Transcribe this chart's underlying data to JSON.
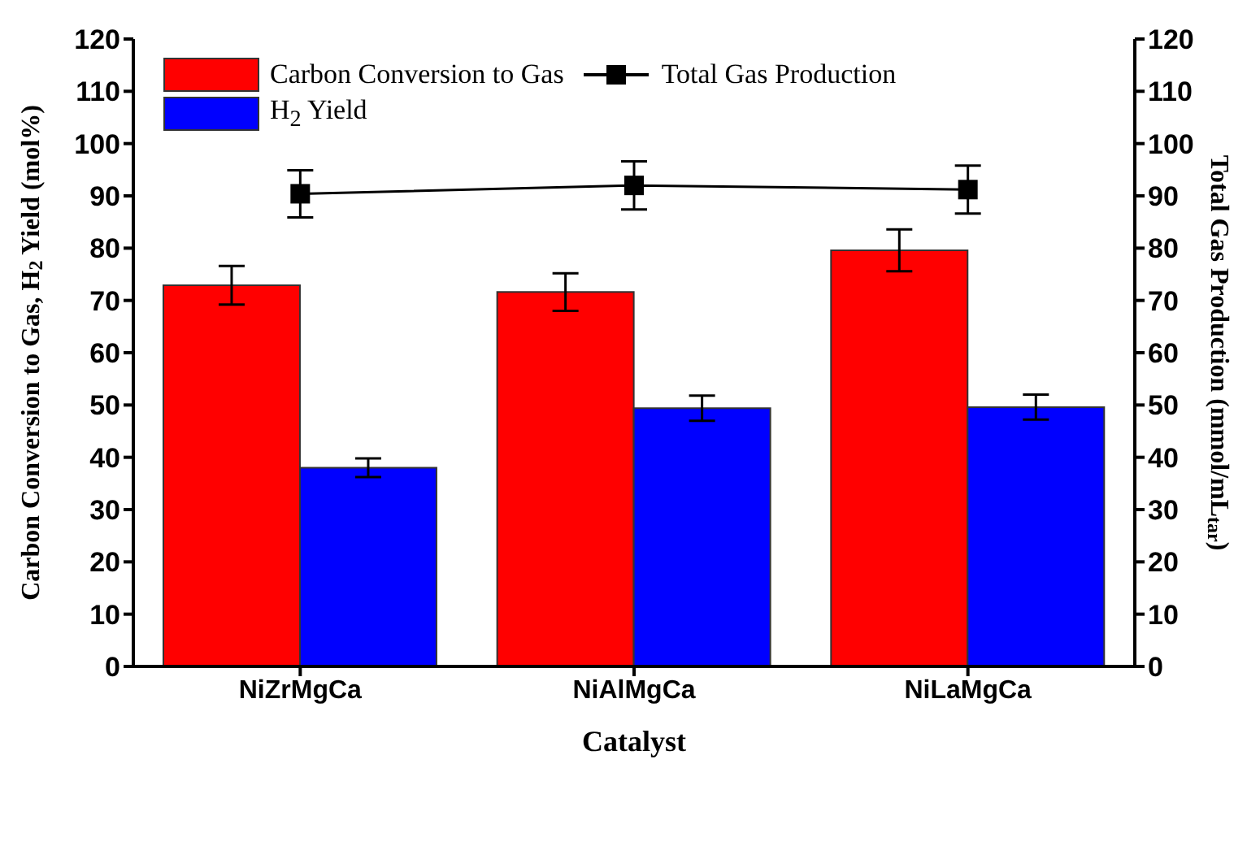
{
  "chart_data": {
    "type": "bar",
    "xlabel": "Catalyst",
    "ylabel": "Carbon Conversion to Gas, H$_{2}$ Yield (mol%)",
    "y2label": "Total Gas Production (mmol/mL$_{tar}$)",
    "categories": [
      "NiZrMgCa",
      "NiAlMgCa",
      "NiLaMgCa"
    ],
    "series": [
      {
        "name": "Carbon Conversion to Gas",
        "color": "#ff0000",
        "values": [
          72.9,
          71.6,
          79.6
        ],
        "errors": [
          3.7,
          3.6,
          4.0
        ]
      },
      {
        "name": "H$_{2}$ Yield",
        "color": "#0000ff",
        "values": [
          38.0,
          49.4,
          49.6
        ],
        "errors": [
          1.8,
          2.4,
          2.4
        ]
      },
      {
        "name": "Total Gas Production",
        "type": "line",
        "axis": "y2",
        "color": "#000000",
        "marker": "square",
        "values": [
          90.4,
          92.0,
          91.2
        ],
        "errors": [
          4.5,
          4.6,
          4.6
        ]
      }
    ],
    "ylim": [
      0,
      120
    ],
    "yticks": [
      0,
      10,
      20,
      30,
      40,
      50,
      60,
      70,
      80,
      90,
      100,
      110,
      120
    ],
    "y2lim": [
      0,
      120
    ],
    "y2ticks": [
      0,
      10,
      20,
      30,
      40,
      50,
      60,
      70,
      80,
      90,
      100,
      110,
      120
    ],
    "legend": "top left"
  }
}
